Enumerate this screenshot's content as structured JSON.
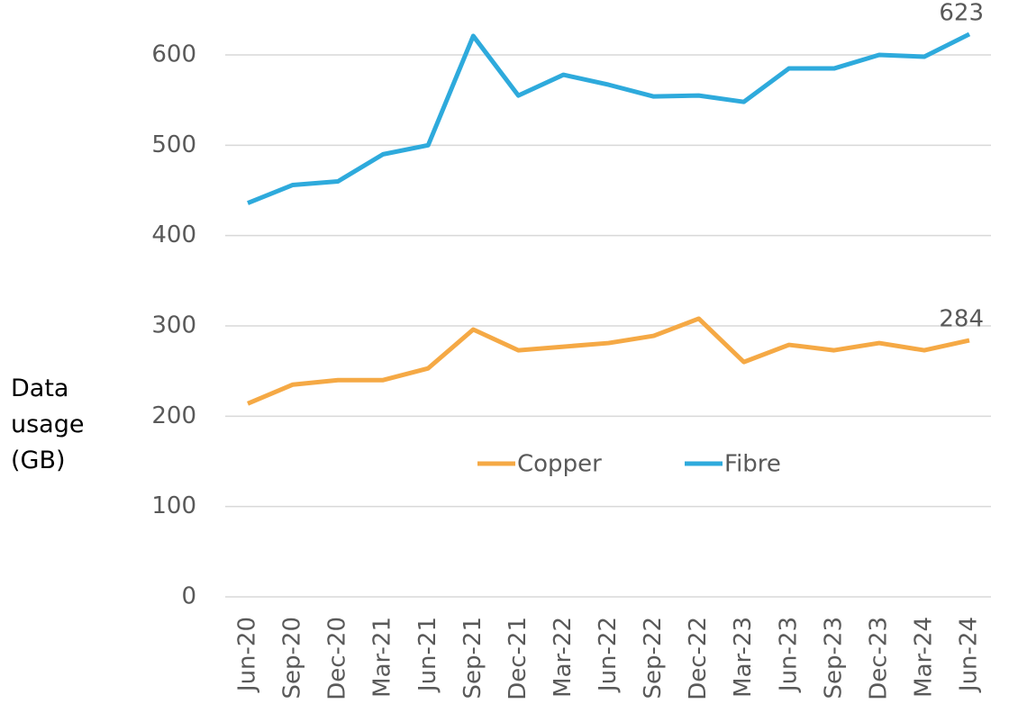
{
  "chart_data": {
    "type": "line",
    "y_label": "Data usage (GB)",
    "categories": [
      "Jun-20",
      "Sep-20",
      "Dec-20",
      "Mar-21",
      "Jun-21",
      "Sep-21",
      "Dec-21",
      "Mar-22",
      "Jun-22",
      "Sep-22",
      "Dec-22",
      "Mar-23",
      "Jun-23",
      "Sep-23",
      "Dec-23",
      "Mar-24",
      "Jun-24"
    ],
    "series": [
      {
        "name": "Copper",
        "color": "#f5a945",
        "values": [
          214,
          235,
          240,
          240,
          253,
          296,
          273,
          277,
          281,
          289,
          308,
          260,
          279,
          273,
          281,
          273,
          284
        ]
      },
      {
        "name": "Fibre",
        "color": "#2eaadc",
        "values": [
          436,
          456,
          460,
          490,
          500,
          621,
          555,
          578,
          567,
          554,
          555,
          548,
          585,
          585,
          600,
          598,
          623
        ]
      }
    ],
    "ylim": [
      0,
      600
    ],
    "yticks": [
      0,
      100,
      200,
      300,
      400,
      500,
      600
    ],
    "grid": true,
    "legend": "center"
  }
}
